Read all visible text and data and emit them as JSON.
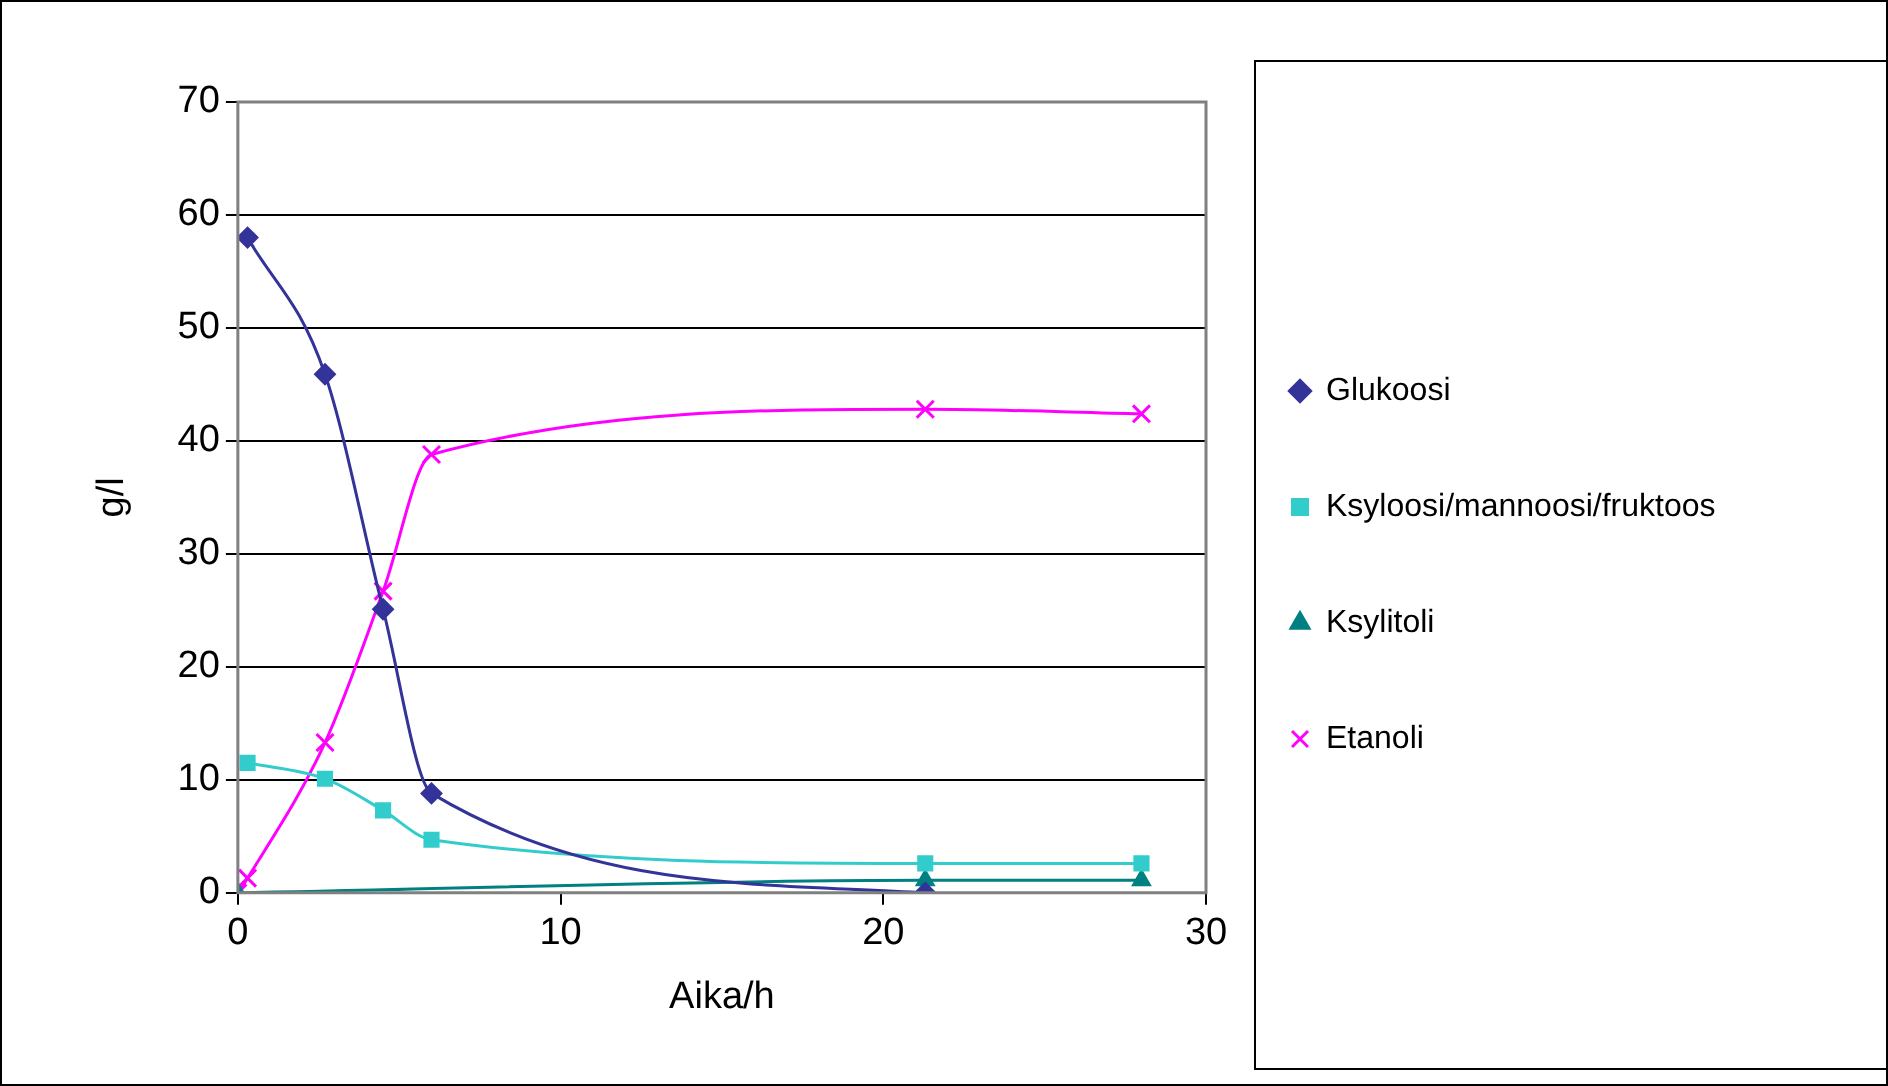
{
  "chart_data": {
    "type": "line",
    "xlabel": "Aika/h",
    "ylabel": "g/l",
    "xlim": [
      0,
      30
    ],
    "xticks": [
      0,
      10,
      20,
      30
    ],
    "ylim": [
      0,
      70
    ],
    "yticks": [
      0,
      10,
      20,
      30,
      40,
      50,
      60,
      70
    ],
    "grid": "y",
    "legend": "right",
    "line_style": "solid",
    "series": [
      {
        "name": "Glukoosi",
        "color": "#333399",
        "marker": "diamond",
        "x": [
          0.3,
          2.7,
          4.5,
          6.0,
          21.3
        ],
        "values": [
          58.0,
          45.9,
          25.1,
          8.8,
          0
        ]
      },
      {
        "name": "Ksyloosi/mannoosi/fruktoos",
        "color": "#33cccc",
        "marker": "square",
        "x": [
          0.3,
          2.7,
          4.5,
          6.0,
          21.3,
          28.0
        ],
        "values": [
          11.5,
          10.1,
          7.3,
          4.7,
          2.6,
          2.6
        ]
      },
      {
        "name": "Ksylitoli",
        "color": "#008080",
        "marker": "triangle",
        "x": [
          0,
          21.3,
          28.0
        ],
        "values": [
          0,
          1.1,
          1.1
        ]
      },
      {
        "name": "Etanoli",
        "color": "#ff00ff",
        "marker": "cross",
        "x": [
          0,
          0.3,
          2.7,
          4.5,
          6.0,
          21.3,
          28.0
        ],
        "values": [
          0,
          1.3,
          13.3,
          26.7,
          38.8,
          42.8,
          42.4
        ]
      }
    ]
  }
}
